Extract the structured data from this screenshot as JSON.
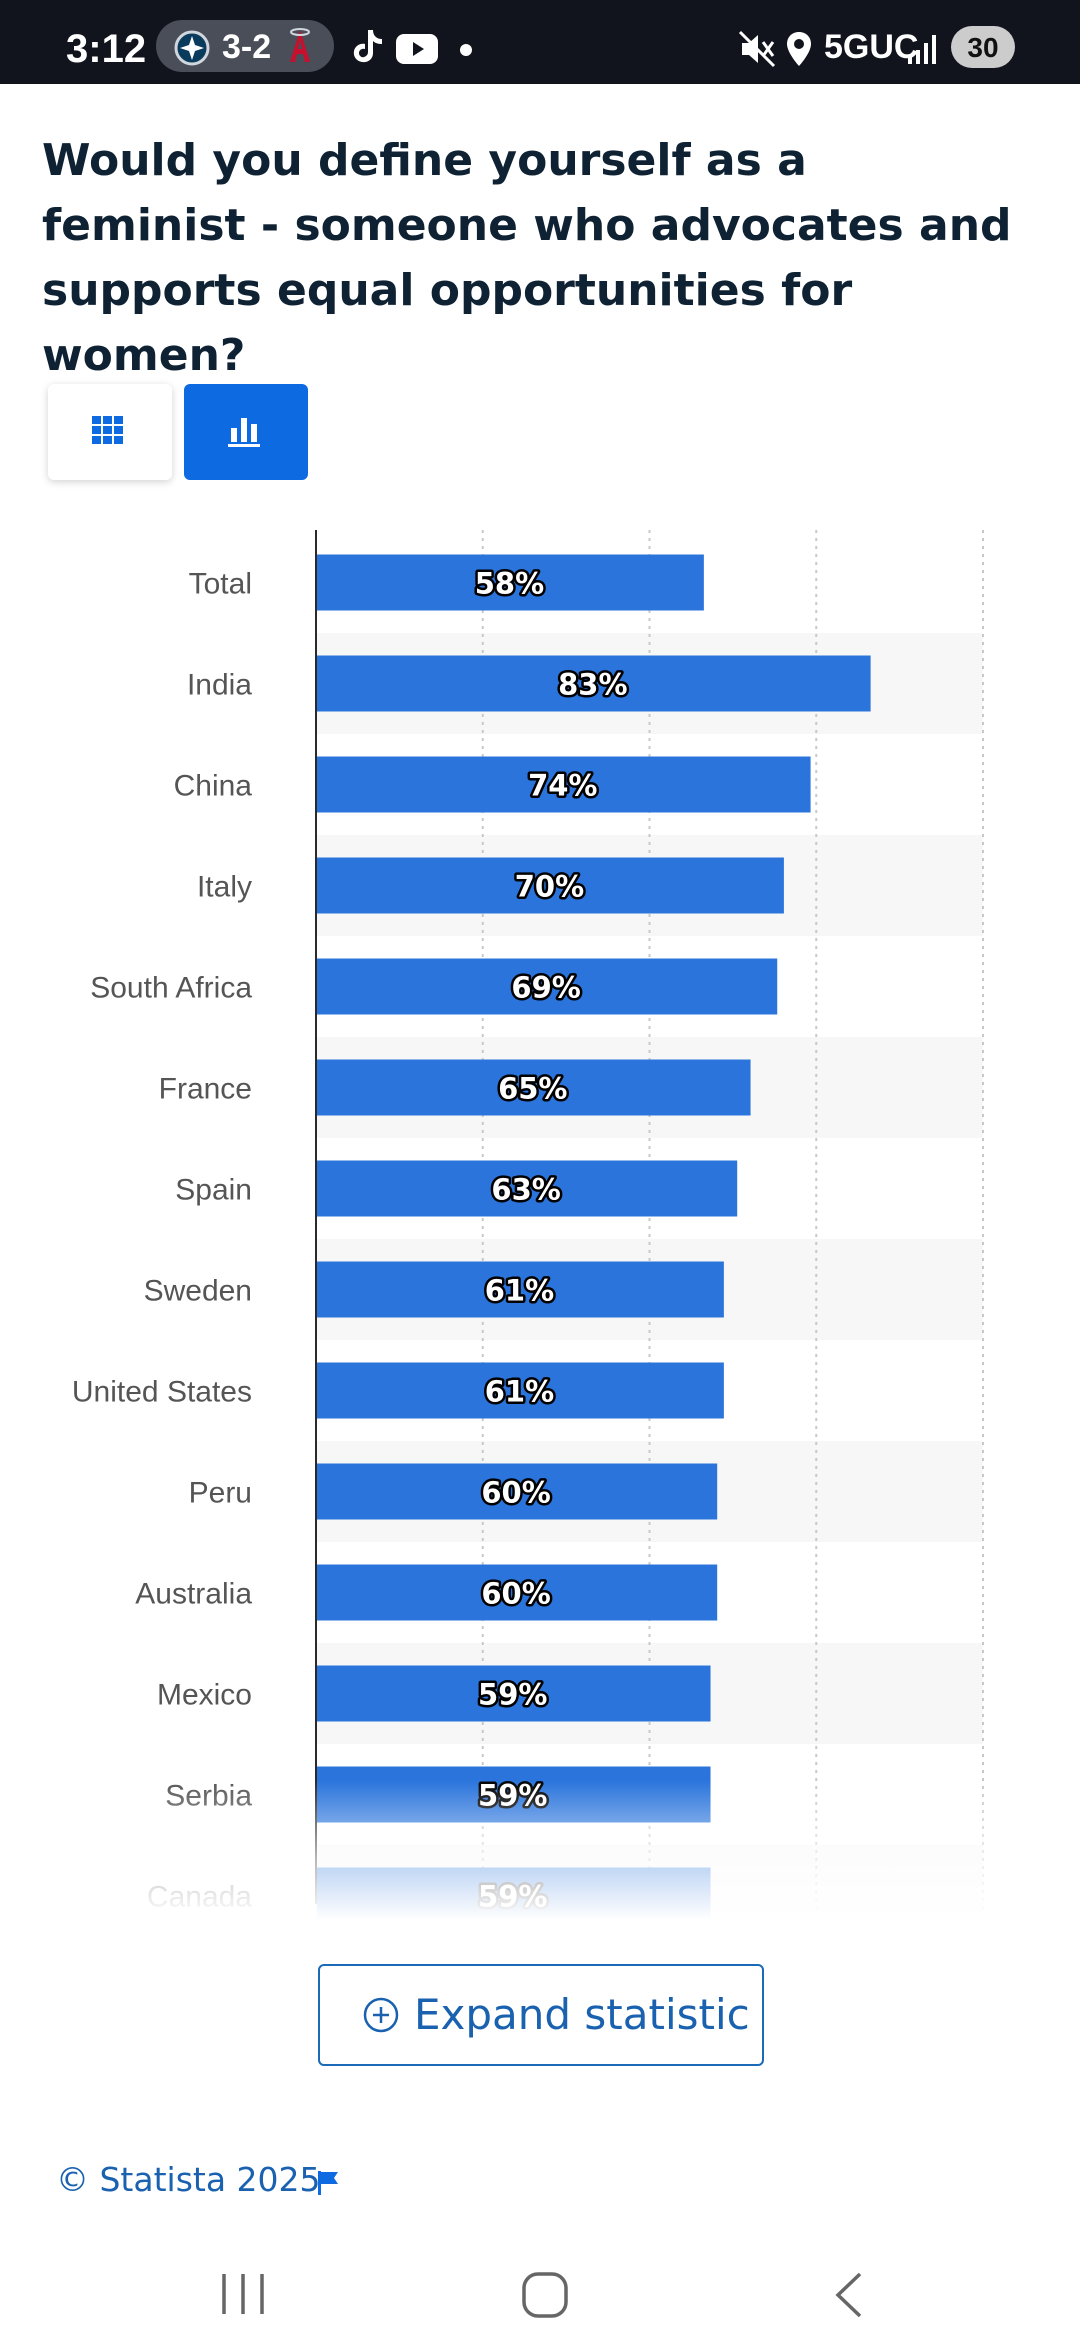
{
  "status_bar": {
    "time": "3:12",
    "score": "3-2",
    "network": "5GUC",
    "battery": "30"
  },
  "view_toggle": {
    "table_icon": "grid-icon",
    "chart_icon": "bar-chart-icon",
    "active": "chart"
  },
  "expand": {
    "label": "Expand statistic",
    "icon": "plus-circle-icon"
  },
  "footer": {
    "copyright": "© Statista 2025",
    "icon": "flag-icon"
  },
  "colors": {
    "bar": "#2a74dc",
    "title": "#0f2233",
    "accent": "#0d6ae0",
    "link": "#1a62b0"
  },
  "chart_data": {
    "type": "bar",
    "orientation": "horizontal",
    "title": "Would you define yourself as a feminist - someone who advocates and supports equal opportunities for women?",
    "categories": [
      "Total",
      "India",
      "China",
      "Italy",
      "South Africa",
      "France",
      "Spain",
      "Sweden",
      "United States",
      "Peru",
      "Australia",
      "Mexico",
      "Serbia",
      "Canada"
    ],
    "values": [
      58,
      83,
      74,
      70,
      69,
      65,
      63,
      61,
      61,
      60,
      60,
      59,
      59,
      59
    ],
    "data_labels": [
      "58%",
      "83%",
      "74%",
      "70%",
      "69%",
      "65%",
      "63%",
      "61%",
      "61%",
      "60%",
      "60%",
      "59%",
      "59%",
      "59%"
    ],
    "xlim": [
      0,
      100
    ],
    "gridlines": [
      25,
      50,
      75,
      100
    ],
    "tick_labels_visible": false,
    "xlabel": "",
    "ylabel": ""
  }
}
